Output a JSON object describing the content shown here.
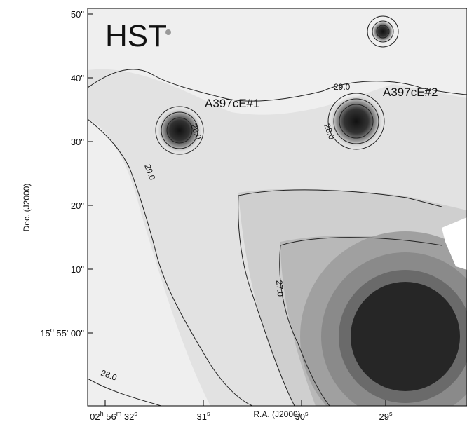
{
  "panel_label": "HST",
  "sources": [
    {
      "label": "A397cE#1"
    },
    {
      "label": "A397cE#2"
    }
  ],
  "contour_labels": [
    "29.0",
    "28.0",
    "29.0",
    "28.0",
    "27.0",
    "28.0"
  ],
  "y_axis": {
    "title": "Dec. (J2000)",
    "ticks": [
      [
        "50\""
      ],
      [
        "40\""
      ],
      [
        "30\""
      ],
      [
        "20\""
      ],
      [
        "10\""
      ],
      [
        "15",
        "o",
        " 55' 00\""
      ]
    ]
  },
  "x_axis": {
    "title": "R.A. (J2000)",
    "ticks": [
      [
        "02",
        "h",
        " 56",
        "m",
        " 32",
        "s"
      ],
      [
        "31",
        "s"
      ],
      [
        "30",
        "s"
      ],
      [
        "29",
        "s"
      ]
    ]
  }
}
